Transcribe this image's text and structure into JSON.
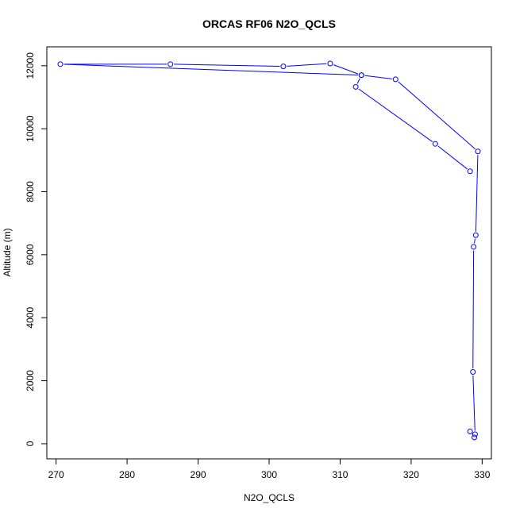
{
  "chart_data": {
    "type": "line",
    "title": "ORCAS RF06 N2O_QCLS",
    "xlabel": "N2O_QCLS",
    "ylabel": "Altitude (m)",
    "xlim": [
      268.7,
      331.3
    ],
    "ylim": [
      -480,
      12600
    ],
    "xticks": [
      270,
      280,
      290,
      300,
      310,
      320,
      330
    ],
    "yticks": [
      0,
      2000,
      4000,
      6000,
      8000,
      10000,
      12000
    ],
    "grid": false,
    "legend": "none",
    "series_color": "#0000ff",
    "series": [
      {
        "x": [
          328.9,
          328.3,
          329.0,
          328.7,
          328.8,
          329.1,
          329.4,
          317.8,
          313.0,
          270.6,
          286.1,
          302.0,
          308.6,
          313.0,
          312.2,
          323.4,
          328.3
        ],
        "y": [
          200,
          390,
          300,
          2280,
          6250,
          6620,
          9280,
          11570,
          11700,
          12050,
          12050,
          11980,
          12070,
          11700,
          11330,
          9520,
          8650
        ]
      }
    ]
  }
}
